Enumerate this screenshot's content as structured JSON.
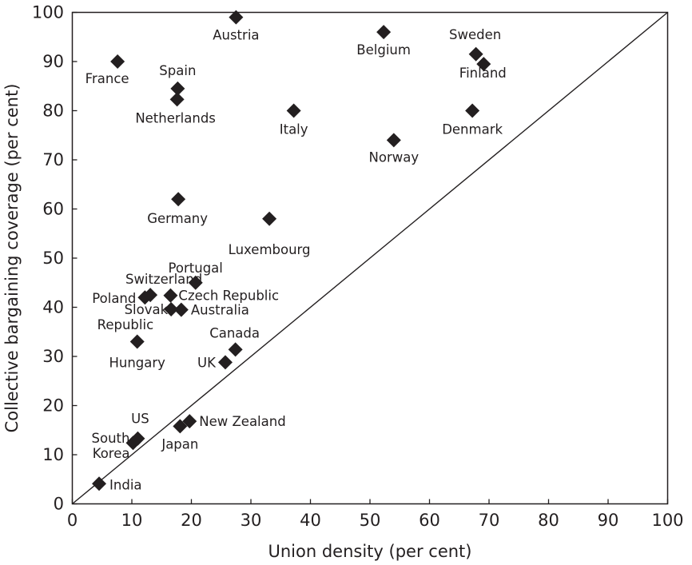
{
  "chart_data": {
    "type": "scatter",
    "title": "",
    "xlabel": "Union density (per cent)",
    "ylabel": "Collective bargaining coverage (per cent)",
    "xlim": [
      0,
      100
    ],
    "ylim": [
      0,
      100
    ],
    "x_ticks": [
      "0",
      "10",
      "20",
      "30",
      "40",
      "50",
      "60",
      "70",
      "80",
      "90",
      "100"
    ],
    "y_ticks": [
      "0",
      "10",
      "20",
      "30",
      "40",
      "50",
      "60",
      "70",
      "80",
      "90",
      "100"
    ],
    "grid": false,
    "reference_line": "x = y",
    "marker": "diamond",
    "marker_color": "#231f20",
    "points": [
      {
        "label": "Austria",
        "x": 27.5,
        "y": 99
      },
      {
        "label": "Belgium",
        "x": 52.3,
        "y": 96
      },
      {
        "label": "Sweden",
        "x": 67.8,
        "y": 91.5
      },
      {
        "label": "Finland",
        "x": 69.1,
        "y": 89.5
      },
      {
        "label": "France",
        "x": 7.6,
        "y": 90
      },
      {
        "label": "Spain",
        "x": 17.7,
        "y": 84.5
      },
      {
        "label": "Netherlands",
        "x": 17.6,
        "y": 82.3
      },
      {
        "label": "Italy",
        "x": 37.2,
        "y": 80
      },
      {
        "label": "Denmark",
        "x": 67.2,
        "y": 80
      },
      {
        "label": "Norway",
        "x": 54,
        "y": 74
      },
      {
        "label": "Germany",
        "x": 17.8,
        "y": 62
      },
      {
        "label": "Luxembourg",
        "x": 33.1,
        "y": 58
      },
      {
        "label": "Portugal",
        "x": 20.7,
        "y": 45
      },
      {
        "label": "Switzerland",
        "x": 13.1,
        "y": 42.5
      },
      {
        "label": "Poland",
        "x": 12.2,
        "y": 42
      },
      {
        "label": "Czech Republic",
        "x": 16.5,
        "y": 42.4
      },
      {
        "label": "Slovak Republic",
        "x": 16.6,
        "y": 39.6
      },
      {
        "label": "Australia",
        "x": 18.3,
        "y": 39.5
      },
      {
        "label": "Hungary",
        "x": 10.9,
        "y": 33
      },
      {
        "label": "Canada",
        "x": 27.4,
        "y": 31.4
      },
      {
        "label": "UK",
        "x": 25.7,
        "y": 28.8
      },
      {
        "label": "New Zealand",
        "x": 19.7,
        "y": 16.8
      },
      {
        "label": "Japan",
        "x": 18.1,
        "y": 15.8
      },
      {
        "label": "US",
        "x": 11,
        "y": 13.3
      },
      {
        "label": "South Korea",
        "x": 10.2,
        "y": 12.4
      },
      {
        "label": "India",
        "x": 4.5,
        "y": 4.1
      }
    ]
  }
}
